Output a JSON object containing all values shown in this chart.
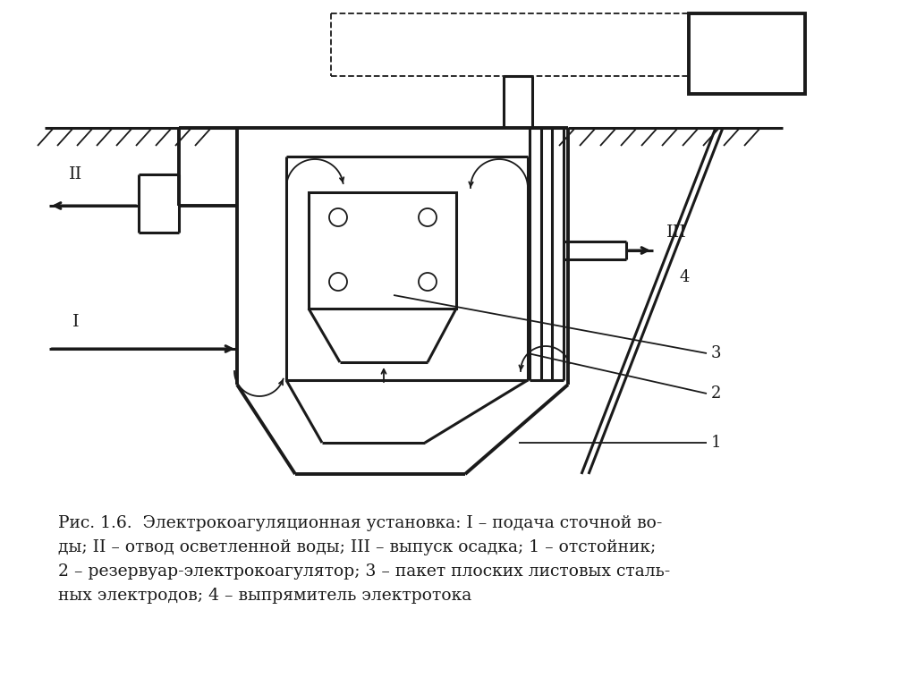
{
  "bg_color": "#ffffff",
  "line_color": "#1a1a1a",
  "caption_line1": "Рис. 1.6.  Электрокоагуляционная установка: I – подача сточной во-",
  "caption_line2": "ды; II – отвод осветленной воды; III – выпуск осадка; 1 – отстойник;",
  "caption_line3": "2 – резервуар-электрокоагулятор; 3 – пакет плоских листовых сталь-",
  "caption_line4": "ных электродов; 4 – выпрямитель электротока",
  "font_size": 13.5
}
